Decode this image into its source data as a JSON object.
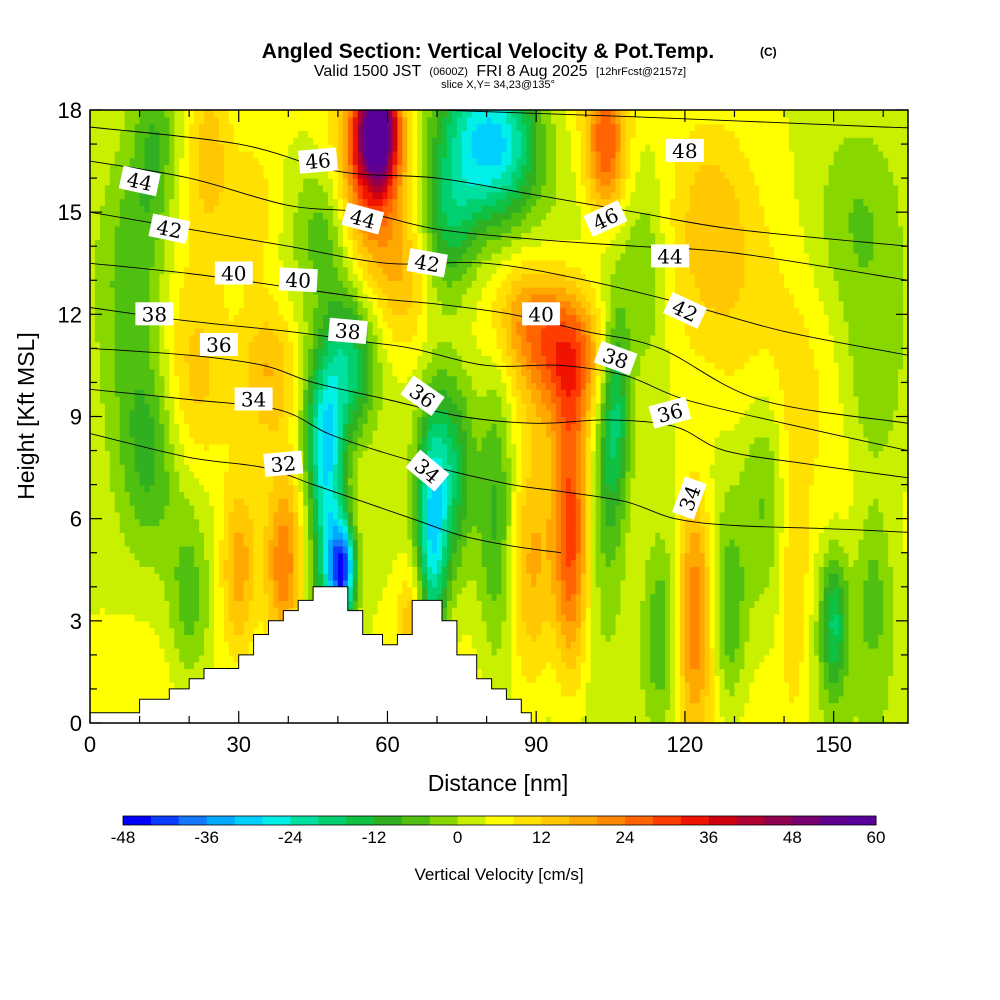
{
  "chart_data": {
    "type": "heatmap",
    "title": "Angled Section: Vertical Velocity & Pot.Temp.",
    "title_mark": "(C)",
    "subtitle_parts": [
      "Valid 1500 JST",
      "(0600Z)",
      "FRI 8 Aug 2025",
      "[12hrFcst@2157z]"
    ],
    "slice_label": "slice X,Y= 34,23@135°",
    "xlabel": "Distance [nm]",
    "ylabel": "Height [Kft MSL]",
    "xlim": [
      0,
      165
    ],
    "ylim": [
      0,
      18
    ],
    "x_ticks": [
      0,
      30,
      60,
      90,
      120,
      150
    ],
    "x_tick_labels": [
      "0",
      "30",
      "60",
      "90",
      "120",
      "150"
    ],
    "y_ticks": [
      0,
      3,
      6,
      9,
      12,
      15,
      18
    ],
    "y_tick_labels": [
      "0",
      "3",
      "6",
      "9",
      "12",
      "15",
      "18"
    ],
    "colorbar": {
      "label": "Vertical Velocity [cm/s]",
      "range": [
        -48,
        60
      ],
      "step": 4,
      "tick_values": [
        -48,
        -36,
        -24,
        -12,
        0,
        12,
        24,
        36,
        48,
        60
      ],
      "tick_labels": [
        "-48",
        "-36",
        "-24",
        "-12",
        "0",
        "12",
        "24",
        "36",
        "48",
        "60"
      ],
      "colors": [
        "#0000ff",
        "#0a3cff",
        "#1478ff",
        "#00a8ff",
        "#00d0ff",
        "#00f0e8",
        "#00e0a0",
        "#00d070",
        "#10c040",
        "#30b020",
        "#50c010",
        "#88d800",
        "#c8f000",
        "#ffff00",
        "#ffe000",
        "#ffc800",
        "#ffa800",
        "#ff8800",
        "#ff6400",
        "#ff3c00",
        "#f01400",
        "#d00010",
        "#b00030",
        "#900050",
        "#780070",
        "#600090",
        "#5a009a"
      ]
    },
    "terrain_profile": [
      [
        0,
        0.3
      ],
      [
        10,
        0.3
      ],
      [
        10,
        0.7
      ],
      [
        16,
        0.7
      ],
      [
        16,
        1.0
      ],
      [
        20,
        1.0
      ],
      [
        20,
        1.3
      ],
      [
        23,
        1.3
      ],
      [
        23,
        1.6
      ],
      [
        30,
        1.6
      ],
      [
        30,
        2.0
      ],
      [
        33,
        2.0
      ],
      [
        33,
        2.6
      ],
      [
        36,
        2.6
      ],
      [
        36,
        3.0
      ],
      [
        39,
        3.0
      ],
      [
        39,
        3.3
      ],
      [
        42,
        3.3
      ],
      [
        42,
        3.6
      ],
      [
        45,
        3.6
      ],
      [
        45,
        4.0
      ],
      [
        52,
        4.0
      ],
      [
        52,
        3.3
      ],
      [
        55,
        3.3
      ],
      [
        55,
        2.6
      ],
      [
        59,
        2.6
      ],
      [
        59,
        2.3
      ],
      [
        62,
        2.3
      ],
      [
        62,
        2.6
      ],
      [
        65,
        2.6
      ],
      [
        65,
        3.6
      ],
      [
        71,
        3.6
      ],
      [
        71,
        3.0
      ],
      [
        74,
        3.0
      ],
      [
        74,
        2.0
      ],
      [
        78,
        2.0
      ],
      [
        78,
        1.3
      ],
      [
        81,
        1.3
      ],
      [
        81,
        1.0
      ],
      [
        84,
        1.0
      ],
      [
        84,
        0.7
      ],
      [
        87,
        0.7
      ],
      [
        87,
        0.3
      ],
      [
        89,
        0.3
      ],
      [
        89,
        0
      ],
      [
        165,
        0
      ]
    ],
    "w_centers": [
      {
        "x": 58,
        "y": 17.5,
        "w": 50,
        "sx": 3,
        "sy": 1.2
      },
      {
        "x": 56,
        "y": 16.0,
        "w": 22,
        "sx": 5,
        "sy": 2.0
      },
      {
        "x": 104,
        "y": 17.0,
        "w": 24,
        "sx": 3,
        "sy": 1.5
      },
      {
        "x": 78,
        "y": 17.0,
        "w": -26,
        "sx": 6,
        "sy": 1.8
      },
      {
        "x": 85,
        "y": 17.0,
        "w": -16,
        "sx": 5,
        "sy": 1.5
      },
      {
        "x": 24,
        "y": 17.0,
        "w": 10,
        "sx": 3,
        "sy": 2.0
      },
      {
        "x": 13,
        "y": 17.0,
        "w": -10,
        "sx": 3,
        "sy": 2.0
      },
      {
        "x": 72,
        "y": 14.5,
        "w": -16,
        "sx": 4,
        "sy": 1.6
      },
      {
        "x": 48,
        "y": 14.5,
        "w": -10,
        "sx": 4,
        "sy": 1.5
      },
      {
        "x": 63,
        "y": 13.0,
        "w": 8,
        "sx": 4,
        "sy": 1.5
      },
      {
        "x": 96,
        "y": 10.8,
        "w": 24,
        "sx": 6,
        "sy": 1.5
      },
      {
        "x": 88,
        "y": 12.0,
        "w": 12,
        "sx": 5,
        "sy": 1.2
      },
      {
        "x": 52,
        "y": 10.5,
        "w": -22,
        "sx": 4,
        "sy": 1.5
      },
      {
        "x": 47,
        "y": 8.5,
        "w": -22,
        "sx": 3,
        "sy": 1.5
      },
      {
        "x": 51,
        "y": 4.5,
        "w": -40,
        "sx": 1.8,
        "sy": 1.0
      },
      {
        "x": 48,
        "y": 5.5,
        "w": -26,
        "sx": 2.5,
        "sy": 2.2
      },
      {
        "x": 69,
        "y": 5.5,
        "w": -28,
        "sx": 2.2,
        "sy": 2.5
      },
      {
        "x": 73,
        "y": 7.5,
        "w": -16,
        "sx": 3,
        "sy": 2.0
      },
      {
        "x": 106,
        "y": 9.5,
        "w": -20,
        "sx": 2.2,
        "sy": 2.0
      },
      {
        "x": 104,
        "y": 6.5,
        "w": -12,
        "sx": 3,
        "sy": 2.5
      },
      {
        "x": 97,
        "y": 5.5,
        "w": 24,
        "sx": 2.5,
        "sy": 3.0
      },
      {
        "x": 89,
        "y": 4.5,
        "w": 12,
        "sx": 3,
        "sy": 2.5
      },
      {
        "x": 82,
        "y": 6.0,
        "w": -12,
        "sx": 2.5,
        "sy": 3.0
      },
      {
        "x": 122,
        "y": 3.5,
        "w": 20,
        "sx": 2.5,
        "sy": 2.5
      },
      {
        "x": 115,
        "y": 2.5,
        "w": -12,
        "sx": 2.5,
        "sy": 2.0
      },
      {
        "x": 129,
        "y": 3.0,
        "w": -12,
        "sx": 2.5,
        "sy": 2.0
      },
      {
        "x": 142,
        "y": 4.0,
        "w": 8,
        "sx": 2,
        "sy": 3.0
      },
      {
        "x": 150,
        "y": 3.0,
        "w": -20,
        "sx": 2,
        "sy": 1.5
      },
      {
        "x": 158,
        "y": 4.0,
        "w": -10,
        "sx": 3,
        "sy": 2.0
      },
      {
        "x": 136,
        "y": 7.0,
        "w": -8,
        "sx": 3,
        "sy": 2.5
      },
      {
        "x": 39,
        "y": 4.5,
        "w": 18,
        "sx": 2.5,
        "sy": 1.8
      },
      {
        "x": 30,
        "y": 4.5,
        "w": 14,
        "sx": 2.5,
        "sy": 1.8
      },
      {
        "x": 20,
        "y": 3.5,
        "w": -10,
        "sx": 3,
        "sy": 1.8
      },
      {
        "x": 12,
        "y": 8.0,
        "w": -10,
        "sx": 4,
        "sy": 2.0
      },
      {
        "x": 21,
        "y": 10.0,
        "w": 10,
        "sx": 5,
        "sy": 2.0
      },
      {
        "x": 36,
        "y": 10.5,
        "w": 12,
        "sx": 4,
        "sy": 1.5
      },
      {
        "x": 8,
        "y": 11.5,
        "w": -8,
        "sx": 5,
        "sy": 2.5
      },
      {
        "x": 9,
        "y": 14.5,
        "w": -8,
        "sx": 5,
        "sy": 2.0
      },
      {
        "x": 33,
        "y": 15.0,
        "w": 8,
        "sx": 4,
        "sy": 1.5
      },
      {
        "x": 65,
        "y": 3.0,
        "w": 12,
        "sx": 2,
        "sy": 1.2
      },
      {
        "x": 140,
        "y": 10.5,
        "w": 6,
        "sx": 10,
        "sy": 2.5
      },
      {
        "x": 125,
        "y": 15.0,
        "w": 8,
        "sx": 6,
        "sy": 2.5
      },
      {
        "x": 155,
        "y": 15.0,
        "w": -6,
        "sx": 6,
        "sy": 2.5
      },
      {
        "x": 112,
        "y": 13.0,
        "w": -8,
        "sx": 3,
        "sy": 2.0
      },
      {
        "x": 158,
        "y": 9.5,
        "w": -8,
        "sx": 5,
        "sy": 2.0
      }
    ],
    "theta_contours": [
      {
        "level": 48,
        "label": "48",
        "points": [
          [
            0,
            18.2
          ],
          [
            40,
            18.1
          ],
          [
            70,
            18.0
          ],
          [
            110,
            17.8
          ],
          [
            160,
            17.5
          ],
          [
            165,
            17.5
          ]
        ]
      },
      {
        "level": 46,
        "label": "46",
        "points": [
          [
            0,
            17.5
          ],
          [
            30,
            17.0
          ],
          [
            50,
            16.2
          ],
          [
            70,
            16.0
          ],
          [
            90,
            15.5
          ],
          [
            110,
            15.0
          ],
          [
            130,
            14.5
          ],
          [
            165,
            14.0
          ]
        ]
      },
      {
        "level": 44,
        "label": "44",
        "points": [
          [
            0,
            16.5
          ],
          [
            20,
            16.0
          ],
          [
            40,
            15.2
          ],
          [
            55,
            15.0
          ],
          [
            70,
            14.5
          ],
          [
            90,
            14.2
          ],
          [
            110,
            14.0
          ],
          [
            130,
            13.8
          ],
          [
            165,
            13.0
          ]
        ]
      },
      {
        "level": 42,
        "label": "42",
        "points": [
          [
            0,
            15.0
          ],
          [
            20,
            14.5
          ],
          [
            40,
            14.0
          ],
          [
            60,
            13.5
          ],
          [
            80,
            13.5
          ],
          [
            100,
            13.0
          ],
          [
            120,
            12.3
          ],
          [
            140,
            11.5
          ],
          [
            165,
            10.8
          ]
        ]
      },
      {
        "level": 40,
        "label": "40",
        "points": [
          [
            0,
            13.5
          ],
          [
            20,
            13.2
          ],
          [
            40,
            12.8
          ],
          [
            55,
            12.5
          ],
          [
            70,
            12.3
          ],
          [
            85,
            12.0
          ],
          [
            100,
            11.5
          ],
          [
            115,
            11.0
          ],
          [
            135,
            9.5
          ],
          [
            165,
            8.8
          ]
        ]
      },
      {
        "level": 38,
        "label": "38",
        "points": [
          [
            0,
            12.2
          ],
          [
            20,
            11.8
          ],
          [
            40,
            11.5
          ],
          [
            55,
            11.2
          ],
          [
            65,
            11.0
          ],
          [
            80,
            10.5
          ],
          [
            95,
            10.5
          ],
          [
            108,
            10.2
          ],
          [
            120,
            9.5
          ],
          [
            140,
            8.8
          ],
          [
            165,
            8.0
          ]
        ]
      },
      {
        "level": 36,
        "label": "36",
        "points": [
          [
            0,
            11.0
          ],
          [
            20,
            10.8
          ],
          [
            35,
            10.5
          ],
          [
            45,
            10.0
          ],
          [
            60,
            9.5
          ],
          [
            75,
            9.0
          ],
          [
            90,
            8.8
          ],
          [
            105,
            8.9
          ],
          [
            118,
            8.7
          ],
          [
            128,
            8.0
          ],
          [
            145,
            7.6
          ],
          [
            165,
            7.2
          ]
        ]
      },
      {
        "level": 34,
        "label": "34",
        "points": [
          [
            0,
            9.8
          ],
          [
            20,
            9.5
          ],
          [
            38,
            9.2
          ],
          [
            48,
            8.5
          ],
          [
            58,
            8.0
          ],
          [
            70,
            7.5
          ],
          [
            85,
            7.0
          ],
          [
            95,
            6.8
          ],
          [
            108,
            6.5
          ],
          [
            118,
            6.0
          ],
          [
            130,
            5.8
          ],
          [
            150,
            5.7
          ],
          [
            165,
            5.6
          ]
        ]
      },
      {
        "level": 32,
        "label": "32",
        "points": [
          [
            0,
            8.5
          ],
          [
            20,
            7.8
          ],
          [
            35,
            7.5
          ],
          [
            45,
            7.0
          ],
          [
            55,
            6.5
          ],
          [
            65,
            6.0
          ],
          [
            75,
            5.5
          ],
          [
            85,
            5.2
          ],
          [
            95,
            5.0
          ]
        ]
      }
    ],
    "contour_labels": [
      {
        "text": "48",
        "x": 120,
        "y": 16.8,
        "angle": 0
      },
      {
        "text": "46",
        "x": 46,
        "y": 16.5,
        "angle": -5
      },
      {
        "text": "46",
        "x": 104,
        "y": 14.8,
        "angle": -25
      },
      {
        "text": "44",
        "x": 10,
        "y": 15.9,
        "angle": 12
      },
      {
        "text": "44",
        "x": 55,
        "y": 14.8,
        "angle": 15
      },
      {
        "text": "44",
        "x": 117,
        "y": 13.7,
        "angle": 0
      },
      {
        "text": "42",
        "x": 16,
        "y": 14.5,
        "angle": 12
      },
      {
        "text": "42",
        "x": 68,
        "y": 13.5,
        "angle": 10
      },
      {
        "text": "42",
        "x": 120,
        "y": 12.1,
        "angle": 25
      },
      {
        "text": "40",
        "x": 29,
        "y": 13.2,
        "angle": 0
      },
      {
        "text": "40",
        "x": 42,
        "y": 13.0,
        "angle": 3
      },
      {
        "text": "40",
        "x": 91,
        "y": 12.0,
        "angle": 0
      },
      {
        "text": "38",
        "x": 13,
        "y": 12.0,
        "angle": 0
      },
      {
        "text": "38",
        "x": 52,
        "y": 11.5,
        "angle": 5
      },
      {
        "text": "38",
        "x": 106,
        "y": 10.7,
        "angle": 20
      },
      {
        "text": "36",
        "x": 26,
        "y": 11.1,
        "angle": 0
      },
      {
        "text": "36",
        "x": 67,
        "y": 9.6,
        "angle": 35
      },
      {
        "text": "36",
        "x": 117,
        "y": 9.1,
        "angle": -15
      },
      {
        "text": "34",
        "x": 33,
        "y": 9.5,
        "angle": 0
      },
      {
        "text": "34",
        "x": 68,
        "y": 7.4,
        "angle": 40
      },
      {
        "text": "34",
        "x": 121,
        "y": 6.6,
        "angle": -70
      },
      {
        "text": "32",
        "x": 39,
        "y": 7.6,
        "angle": -5
      }
    ]
  }
}
